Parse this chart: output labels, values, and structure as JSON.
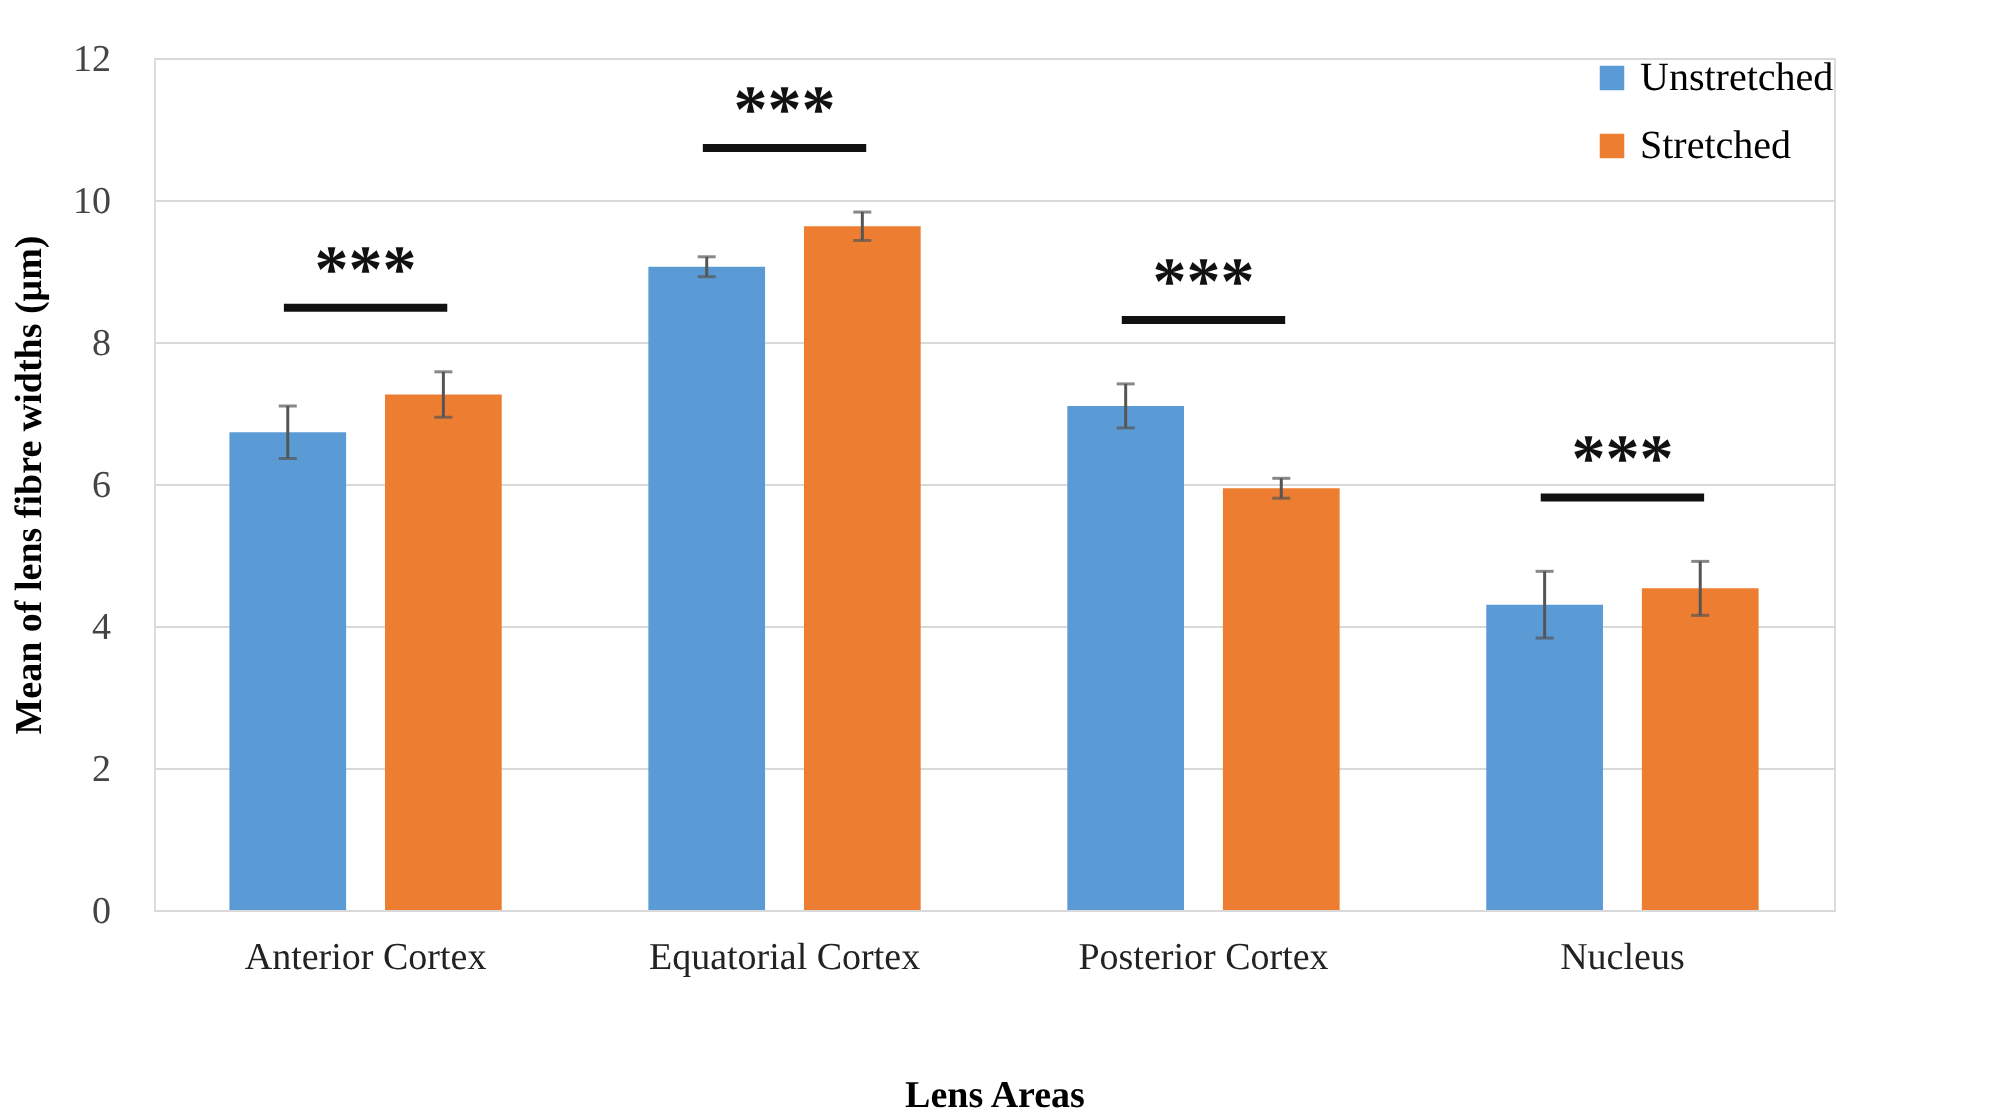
{
  "chart_data": {
    "type": "bar",
    "xlabel": "Lens Areas",
    "ylabel": "Mean of lens fibre widths (μm)",
    "categories": [
      "Anterior Cortex",
      "Equatorial Cortex",
      "Posterior Cortex",
      "Nucleus"
    ],
    "series": [
      {
        "name": "Unstretched",
        "color": "#5b9bd5",
        "values": [
          6.73,
          9.06,
          7.1,
          4.3
        ],
        "errors": [
          0.37,
          0.14,
          0.31,
          0.47
        ]
      },
      {
        "name": "Stretched",
        "color": "#ed7d31",
        "values": [
          7.26,
          9.63,
          5.94,
          4.53
        ],
        "errors": [
          0.32,
          0.2,
          0.14,
          0.38
        ]
      }
    ],
    "ylim": [
      0,
      12
    ],
    "yticks": [
      0,
      2,
      4,
      6,
      8,
      10,
      12
    ],
    "grid": "y",
    "legend": "top right",
    "annotations": [
      "***",
      "***",
      "***",
      "***"
    ]
  }
}
